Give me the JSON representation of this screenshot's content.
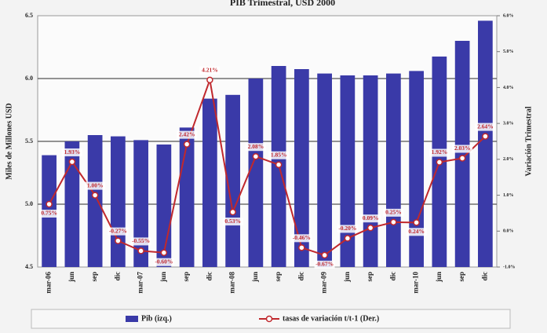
{
  "chart_data": {
    "type": "bar",
    "title": "PIB Trimestral, USD 2000",
    "ylabel": "Miles de Millones USD",
    "y2label": "Variación Trimestral",
    "categories": [
      "mar-06",
      "jun",
      "sep",
      "dic",
      "mar-07",
      "jun",
      "sep",
      "dic",
      "mar-08",
      "jun",
      "sep",
      "dic",
      "mar-09",
      "jun",
      "sep",
      "dic",
      "mar-10",
      "jun",
      "sep",
      "dic"
    ],
    "series": [
      {
        "name": "Pib (izq.)",
        "type": "bar",
        "color": "#3a3aa8",
        "values": [
          5.39,
          5.5,
          5.55,
          5.54,
          5.51,
          5.475,
          5.61,
          5.84,
          5.87,
          6.0,
          6.1,
          6.075,
          6.04,
          6.025,
          6.025,
          6.04,
          6.06,
          6.175,
          6.3,
          6.46
        ]
      },
      {
        "name": "tasas de variación t/t-1 (Der.)",
        "type": "line",
        "axis": "y2",
        "color": "#c0282d",
        "values": [
          0.75,
          1.93,
          1.0,
          -0.27,
          -0.55,
          -0.6,
          2.42,
          4.21,
          0.53,
          2.08,
          1.85,
          -0.46,
          -0.67,
          -0.2,
          0.09,
          0.25,
          0.24,
          1.92,
          2.03,
          2.64
        ],
        "value_labels": [
          "0.75%",
          "1.93%",
          "1.00%",
          "-0.27%",
          "-0.55%",
          "-0.60%",
          "2.42%",
          "4.21%",
          "0.53%",
          "2.08%",
          "1.85%",
          "-0.46%",
          "-0.67%",
          "-0.20%",
          "0.09%",
          "0.25%",
          "0.24%",
          "1.92%",
          "2.03%",
          "2.64%"
        ]
      }
    ],
    "ylim": [
      4.5,
      6.5
    ],
    "yticks": [
      4.5,
      {
        "value": 5.0,
        "label": "5.0"
      },
      5.5,
      {
        "value": 6.0,
        "label": "6.0"
      },
      6.5
    ],
    "y2lim": [
      -1.0,
      6.0
    ],
    "y2ticks": [
      {
        "value": -1.0,
        "label": "-1.0%"
      },
      {
        "value": 0.0,
        "label": "0.0%"
      },
      {
        "value": 1.0,
        "label": "1.0%"
      },
      {
        "value": 2.0,
        "label": "2.0%"
      },
      {
        "value": 3.0,
        "label": "3.0%"
      },
      {
        "value": 4.0,
        "label": "4.0%"
      },
      {
        "value": 5.0,
        "label": "5.0%"
      },
      {
        "value": 6.0,
        "label": "6.0%"
      }
    ],
    "grid": true,
    "legend": "bottom"
  }
}
